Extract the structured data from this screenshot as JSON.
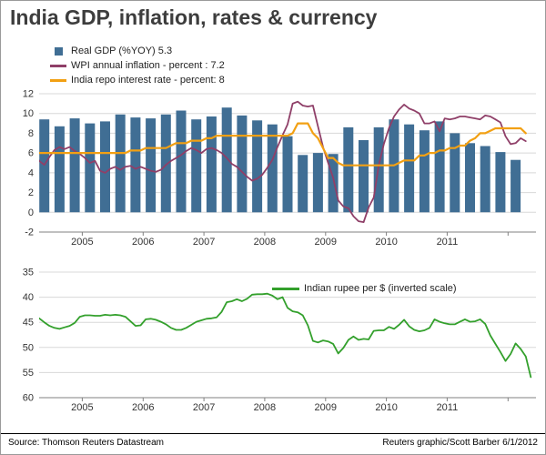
{
  "title": "India GDP, inflation, rates & currency",
  "footer": {
    "source": "Source: Thomson Reuters Datastream",
    "credit": "Reuters graphic/Scott Barber 6/1/2012"
  },
  "colors": {
    "grid": "#d8d8d8",
    "axis": "#808080",
    "text": "#333333",
    "title_text": "#3d3d3d"
  },
  "chart_data": [
    {
      "type": "bar",
      "title": "India GDP, inflation and repo rate",
      "xlim": [
        2004.29,
        2012.46
      ],
      "ylim": [
        -2,
        12
      ],
      "inverted": false,
      "yticks": [
        -2,
        0,
        2,
        4,
        6,
        8,
        10,
        12
      ],
      "x_year_ticks": [
        2005,
        2006,
        2007,
        2008,
        2009,
        2010,
        2011,
        2012
      ],
      "x_year_labels": [
        2005,
        2006,
        2007,
        2008,
        2009,
        2010,
        2011
      ],
      "legend_position": "top-left",
      "grid": true,
      "series": [
        {
          "name": "Real GDP (%YOY) 5.3",
          "type": "bar",
          "color": "#406e94",
          "x_start": 2004.375,
          "x_step": 0.25,
          "values": [
            9.4,
            8.7,
            9.5,
            9.0,
            9.2,
            9.9,
            9.6,
            9.5,
            9.9,
            10.3,
            9.4,
            9.7,
            10.6,
            9.8,
            9.3,
            8.9,
            7.7,
            5.8,
            6.0,
            5.9,
            8.6,
            7.3,
            8.6,
            9.4,
            8.9,
            8.3,
            9.2,
            8.0,
            7.0,
            6.7,
            6.1,
            5.3
          ]
        },
        {
          "name": "WPI annual inflation - percent : 7.2",
          "type": "line",
          "color": "#8f3f68",
          "stroke_width": 1.8,
          "x_start": 2004.042,
          "x_step": 0.083333,
          "values": [
            6.2,
            6.0,
            5.8,
            5.2,
            4.8,
            5.6,
            6.3,
            6.6,
            6.4,
            6.6,
            6.2,
            5.9,
            5.5,
            5.0,
            5.2,
            4.2,
            4.0,
            4.4,
            4.6,
            4.3,
            4.6,
            4.7,
            4.4,
            4.6,
            4.4,
            4.2,
            4.1,
            4.3,
            4.8,
            5.2,
            5.5,
            5.8,
            6.2,
            6.5,
            6.3,
            6.0,
            6.4,
            6.5,
            6.3,
            6.0,
            5.5,
            4.9,
            4.6,
            4.1,
            3.6,
            3.2,
            3.4,
            3.8,
            4.5,
            5.3,
            6.6,
            7.8,
            8.9,
            11.0,
            11.2,
            10.8,
            10.7,
            10.8,
            8.7,
            6.6,
            5.0,
            3.5,
            1.2,
            0.6,
            0.4,
            -0.4,
            -0.9,
            -1.0,
            0.5,
            1.5,
            4.8,
            6.9,
            8.5,
            9.7,
            10.4,
            10.9,
            10.5,
            10.3,
            10.0,
            9.0,
            9.0,
            9.2,
            8.2,
            9.5,
            9.4,
            9.5,
            9.7,
            9.7,
            9.6,
            9.5,
            9.4,
            9.8,
            9.7,
            9.4,
            9.1,
            7.7,
            6.9,
            7.0,
            7.5,
            7.2
          ]
        },
        {
          "name": "India repo interest rate - percent: 8",
          "type": "line",
          "color": "#f2a013",
          "stroke_width": 2.2,
          "x_start": 2004.042,
          "x_step": 0.083333,
          "values": [
            6,
            6,
            6,
            6,
            6,
            6,
            6,
            6,
            6,
            6,
            6,
            6,
            6,
            6,
            6,
            6,
            6,
            6,
            6,
            6,
            6,
            6.25,
            6.25,
            6.25,
            6.5,
            6.5,
            6.5,
            6.5,
            6.5,
            6.75,
            7,
            7,
            7,
            7.25,
            7.25,
            7.25,
            7.5,
            7.5,
            7.75,
            7.75,
            7.75,
            7.75,
            7.75,
            7.75,
            7.75,
            7.75,
            7.75,
            7.75,
            7.75,
            7.75,
            7.75,
            7.75,
            7.75,
            8,
            9,
            9,
            9,
            8,
            7.5,
            6.5,
            5.5,
            5.5,
            5,
            4.75,
            4.75,
            4.75,
            4.75,
            4.75,
            4.75,
            4.75,
            4.75,
            4.75,
            4.75,
            4.75,
            5,
            5.25,
            5.25,
            5.25,
            5.75,
            5.75,
            6,
            6,
            6.25,
            6.25,
            6.5,
            6.5,
            6.75,
            6.75,
            7.25,
            7.5,
            8,
            8,
            8.25,
            8.5,
            8.5,
            8.5,
            8.5,
            8.5,
            8.5,
            8
          ]
        }
      ]
    },
    {
      "type": "line",
      "title": "Indian rupee per US dollar (inverted scale)",
      "xlim": [
        2004.29,
        2012.46
      ],
      "ylim": [
        35,
        60
      ],
      "inverted": true,
      "yticks": [
        35,
        40,
        45,
        50,
        55,
        60
      ],
      "x_year_ticks": [
        2005,
        2006,
        2007,
        2008,
        2009,
        2010,
        2011,
        2012
      ],
      "x_year_labels": [
        2005,
        2006,
        2007,
        2008,
        2009,
        2010,
        2011
      ],
      "legend_position": "top-right-inside",
      "grid": true,
      "series": [
        {
          "name": "Indian rupee per $ (inverted scale)",
          "type": "line",
          "color": "#33a02c",
          "stroke_width": 1.8,
          "x_start": 2004.042,
          "x_step": 0.083333,
          "values": [
            45.4,
            45.1,
            44.8,
            44.2,
            45.0,
            45.7,
            46.1,
            46.3,
            46.0,
            45.7,
            45.1,
            43.9,
            43.6,
            43.6,
            43.7,
            43.7,
            43.5,
            43.6,
            43.5,
            43.6,
            43.9,
            44.8,
            45.7,
            45.6,
            44.4,
            44.3,
            44.5,
            44.9,
            45.4,
            46.1,
            46.5,
            46.5,
            46.1,
            45.5,
            44.9,
            44.6,
            44.3,
            44.2,
            44.0,
            42.9,
            41.0,
            40.8,
            40.4,
            40.8,
            40.3,
            39.5,
            39.4,
            39.4,
            39.3,
            39.7,
            40.4,
            40.0,
            42.1,
            42.8,
            43.0,
            43.6,
            45.6,
            48.7,
            49.0,
            48.6,
            48.8,
            49.3,
            51.2,
            50.1,
            48.5,
            47.8,
            48.5,
            48.3,
            48.4,
            46.7,
            46.6,
            46.6,
            45.9,
            46.3,
            45.5,
            44.5,
            45.8,
            46.5,
            46.8,
            46.6,
            46.1,
            44.4,
            44.9,
            45.2,
            45.4,
            45.4,
            44.9,
            44.4,
            44.9,
            44.8,
            44.4,
            45.3,
            47.6,
            49.3,
            50.9,
            52.7,
            51.3,
            49.2,
            50.3,
            51.8,
            55.9
          ]
        }
      ]
    }
  ]
}
